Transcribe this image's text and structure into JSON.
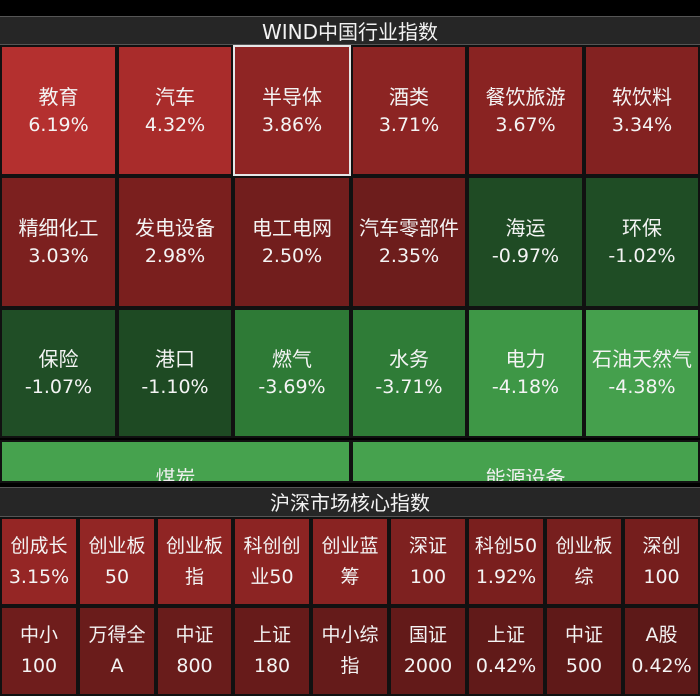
{
  "section1": {
    "title": "WIND中国行业指数",
    "tiles": [
      {
        "name": "教育",
        "pct": "6.19%",
        "color": "#b4302f"
      },
      {
        "name": "汽车",
        "pct": "4.32%",
        "color": "#a92c2b"
      },
      {
        "name": "半导体",
        "pct": "3.86%",
        "color": "#8f2524"
      },
      {
        "name": "酒类",
        "pct": "3.71%",
        "color": "#8c2423"
      },
      {
        "name": "餐饮旅游",
        "pct": "3.67%",
        "color": "#892322"
      },
      {
        "name": "软饮料",
        "pct": "3.34%",
        "color": "#832221"
      },
      {
        "name": "精细化工",
        "pct": "3.03%",
        "color": "#7c201f"
      },
      {
        "name": "发电设备",
        "pct": "2.98%",
        "color": "#7a1f1e"
      },
      {
        "name": "电工电网",
        "pct": "2.50%",
        "color": "#721e1d"
      },
      {
        "name": "汽车零部件",
        "pct": "2.35%",
        "color": "#6d1d1c"
      },
      {
        "name": "海运",
        "pct": "-0.97%",
        "color": "#1f4b24"
      },
      {
        "name": "环保",
        "pct": "-1.02%",
        "color": "#1f4d25"
      },
      {
        "name": "保险",
        "pct": "-1.07%",
        "color": "#204e26"
      },
      {
        "name": "港口",
        "pct": "-1.10%",
        "color": "#1e4a23"
      },
      {
        "name": "燃气",
        "pct": "-3.69%",
        "color": "#2e7a36"
      },
      {
        "name": "水务",
        "pct": "-3.71%",
        "color": "#2f7c37"
      },
      {
        "name": "电力",
        "pct": "-4.18%",
        "color": "#3e9746"
      },
      {
        "name": "石油天然气",
        "pct": "-4.38%",
        "color": "#45a04d"
      }
    ],
    "selected_index": 2,
    "strip": [
      {
        "name": "煤炭"
      },
      {
        "name": "能源设备"
      }
    ]
  },
  "section2": {
    "title": "沪深市场核心指数",
    "cells": [
      {
        "l1": "创成长",
        "l2": "3.15%",
        "color": "#952625"
      },
      {
        "l1": "创业板",
        "l2": "50",
        "color": "#922625"
      },
      {
        "l1": "创业板",
        "l2": "指",
        "color": "#8f2524"
      },
      {
        "l1": "科创创",
        "l2": "业50",
        "color": "#8c2423"
      },
      {
        "l1": "创业蓝",
        "l2": "筹",
        "color": "#892322"
      },
      {
        "l1": "深证",
        "l2": "100",
        "color": "#7e2120"
      },
      {
        "l1": "科创50",
        "l2": "1.92%",
        "color": "#7a1f1e"
      },
      {
        "l1": "创业板",
        "l2": "综",
        "color": "#771f1e"
      },
      {
        "l1": "深创",
        "l2": "100",
        "color": "#751e1d"
      },
      {
        "l1": "中小",
        "l2": "100",
        "color": "#6f1d1c"
      },
      {
        "l1": "万得全",
        "l2": "A",
        "color": "#6a1c1b"
      },
      {
        "l1": "中证",
        "l2": "800",
        "color": "#691c1b"
      },
      {
        "l1": "上证",
        "l2": "180",
        "color": "#671b1a"
      },
      {
        "l1": "中小综",
        "l2": "指",
        "color": "#651b1a"
      },
      {
        "l1": "国证",
        "l2": "2000",
        "color": "#631a19"
      },
      {
        "l1": "上证",
        "l2": "0.42%",
        "color": "#611a19"
      },
      {
        "l1": "中证",
        "l2": "500",
        "color": "#5f1918"
      },
      {
        "l1": "A股",
        "l2": "0.42%",
        "color": "#5d1918"
      }
    ]
  }
}
